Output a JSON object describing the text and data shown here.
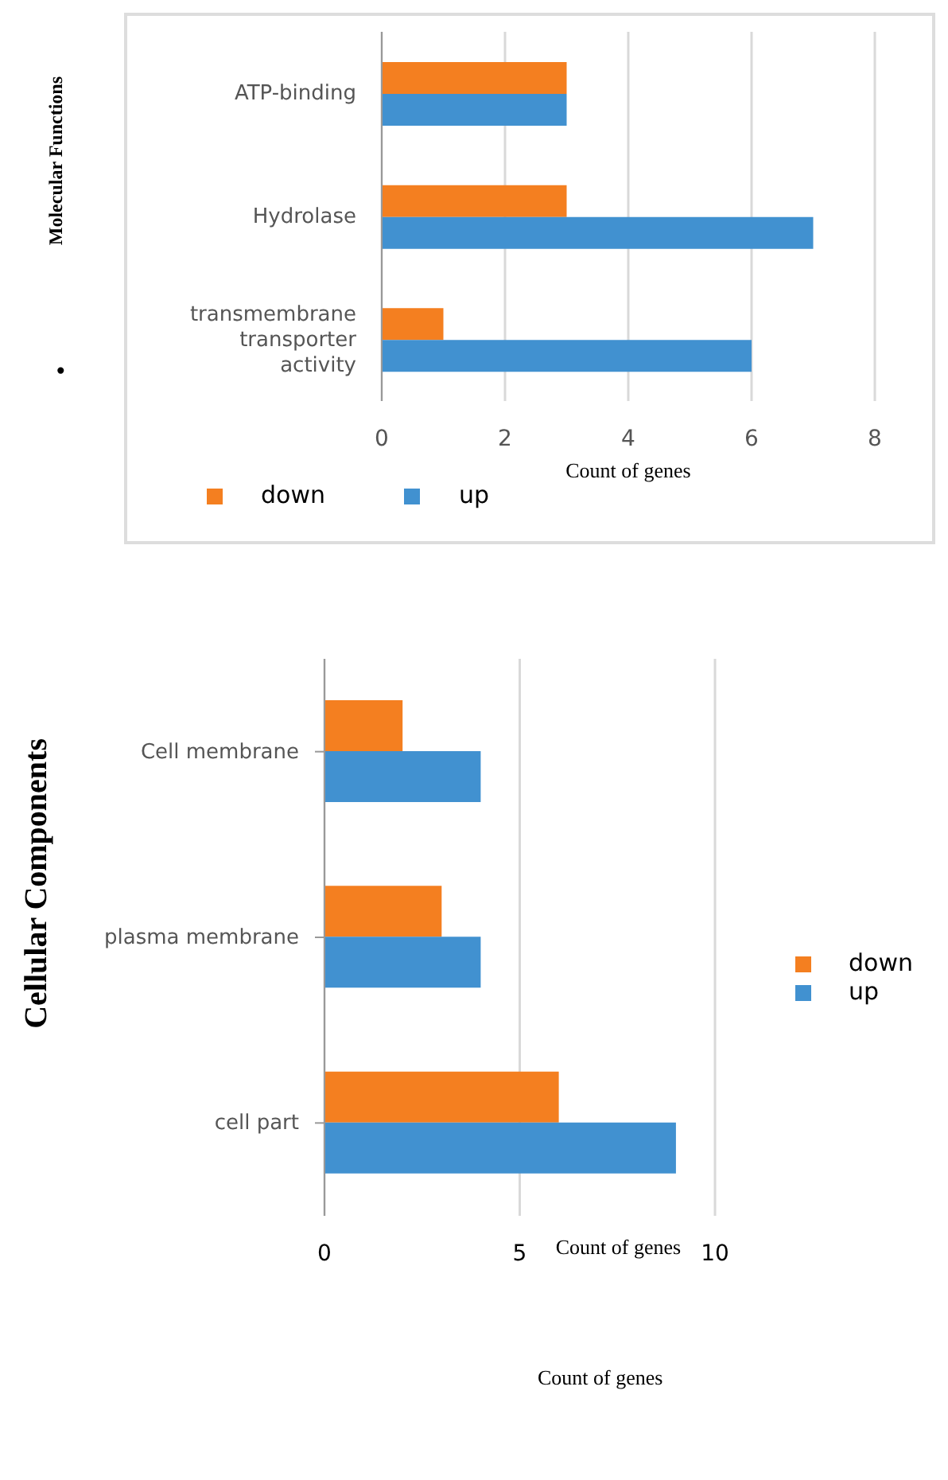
{
  "chart_data": [
    {
      "type": "bar",
      "orientation": "horizontal",
      "ylabel": "Molecular Functions",
      "xlabel": "Count of genes",
      "categories": [
        "ATP-binding",
        "Hydrolase",
        "transmembrane transporter activity"
      ],
      "series": [
        {
          "name": "down",
          "color": "#f47f20",
          "values": [
            3,
            3,
            1
          ]
        },
        {
          "name": "up",
          "color": "#4191d0",
          "values": [
            3,
            7,
            6
          ]
        }
      ],
      "xlim": [
        0,
        8
      ],
      "xticks": [
        0,
        2,
        4,
        6,
        8
      ],
      "grid": "x",
      "legend": "bottom",
      "annotations": [
        "•"
      ]
    },
    {
      "type": "bar",
      "orientation": "horizontal",
      "ylabel": "Cellular Components",
      "xlabel": "Count of genes",
      "categories": [
        "Cell membrane",
        "plasma membrane",
        "cell part"
      ],
      "series": [
        {
          "name": "down",
          "color": "#f47f20",
          "values": [
            2,
            3,
            6
          ]
        },
        {
          "name": "up",
          "color": "#4191d0",
          "values": [
            4,
            4,
            9
          ]
        }
      ],
      "xlim": [
        0,
        10
      ],
      "xticks": [
        0,
        5,
        10
      ],
      "grid": "x",
      "legend": "right",
      "annotations": [
        "Count of genes"
      ]
    }
  ]
}
